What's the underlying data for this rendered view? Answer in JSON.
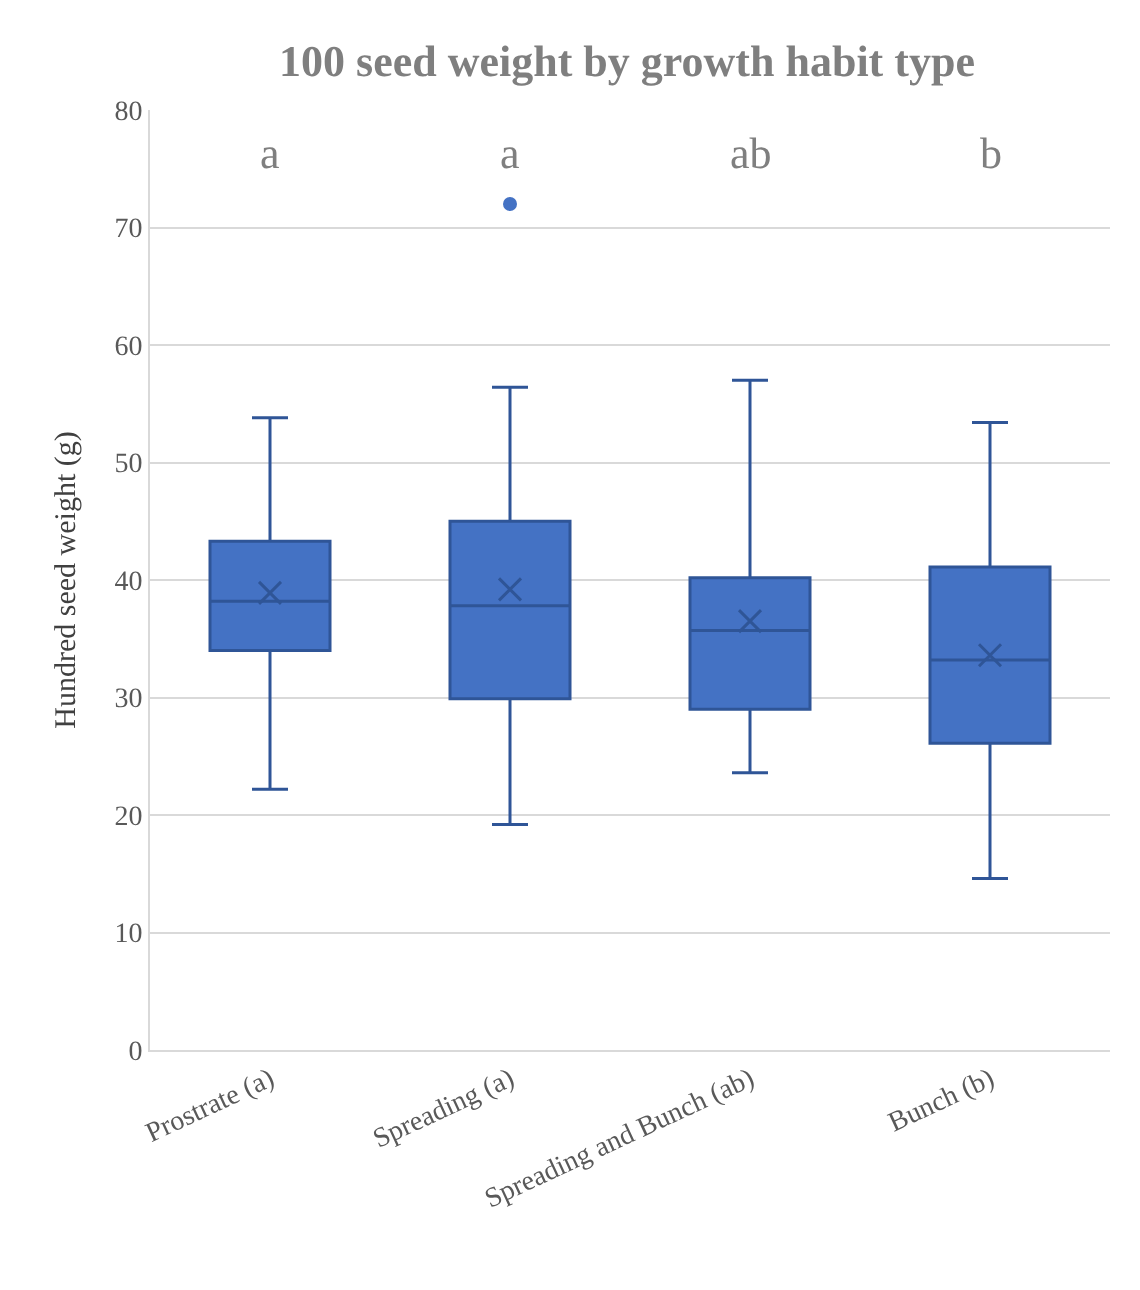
{
  "chart_data": {
    "type": "box",
    "title": "100 seed weight by growth habit type",
    "ylabel": "Hundred seed weight (g)",
    "categories": [
      "Prostrate (a)",
      "Spreading (a)",
      "Spreading and Bunch (ab)",
      "Bunch (b)"
    ],
    "color": "#4472c4",
    "boxes": [
      {
        "low": 22.2,
        "q1": 34.0,
        "median": 38.2,
        "q3": 43.3,
        "high": 53.8,
        "mean": 38.9
      },
      {
        "low": 19.2,
        "q1": 29.9,
        "median": 37.8,
        "q3": 45.0,
        "high": 56.4,
        "mean": 39.2,
        "outliers": [
          72.0
        ]
      },
      {
        "low": 23.6,
        "q1": 29.0,
        "median": 35.7,
        "q3": 40.2,
        "high": 57.0,
        "mean": 36.5
      },
      {
        "low": 14.6,
        "q1": 26.1,
        "median": 33.2,
        "q3": 41.1,
        "high": 53.4,
        "mean": 33.6
      }
    ],
    "annotations": [
      "a",
      "a",
      "ab",
      "b"
    ],
    "ylim": [
      0,
      80
    ],
    "yticks": [
      0,
      10,
      20,
      30,
      40,
      50,
      60,
      70,
      80
    ],
    "grid": "y"
  }
}
